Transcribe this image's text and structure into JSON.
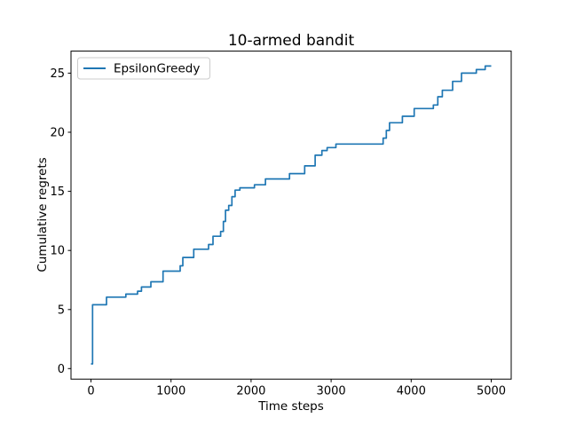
{
  "chart_data": {
    "type": "line",
    "step_mode": "post",
    "title": "10-armed bandit",
    "xlabel": "Time steps",
    "ylabel": "Cumulative regrets",
    "legend": {
      "location": "upper left",
      "entries": [
        {
          "label": "EpsilonGreedy",
          "color": "#1f77b4"
        }
      ]
    },
    "axes": {
      "xlim": [
        -250,
        5250
      ],
      "ylim": [
        -0.89,
        26.86
      ],
      "x_ticks": [
        0,
        1000,
        2000,
        3000,
        4000,
        5000
      ],
      "y_ticks": [
        0,
        5,
        10,
        15,
        20,
        25
      ],
      "grid": false
    },
    "series": [
      {
        "name": "EpsilonGreedy",
        "color": "#1f77b4",
        "points": [
          [
            0,
            0.4
          ],
          [
            20,
            5.4
          ],
          [
            194,
            6.05
          ],
          [
            435,
            6.3
          ],
          [
            582,
            6.55
          ],
          [
            630,
            6.9
          ],
          [
            748,
            7.35
          ],
          [
            900,
            8.25
          ],
          [
            1114,
            8.7
          ],
          [
            1147,
            9.4
          ],
          [
            1284,
            10.1
          ],
          [
            1469,
            10.5
          ],
          [
            1524,
            11.2
          ],
          [
            1620,
            11.6
          ],
          [
            1654,
            12.45
          ],
          [
            1680,
            13.4
          ],
          [
            1720,
            13.8
          ],
          [
            1760,
            14.55
          ],
          [
            1800,
            15.1
          ],
          [
            1860,
            15.3
          ],
          [
            2042,
            15.55
          ],
          [
            2180,
            16.05
          ],
          [
            2480,
            16.5
          ],
          [
            2670,
            17.15
          ],
          [
            2800,
            18.05
          ],
          [
            2885,
            18.45
          ],
          [
            2950,
            18.7
          ],
          [
            3060,
            19.0
          ],
          [
            3650,
            19.5
          ],
          [
            3690,
            20.15
          ],
          [
            3730,
            20.8
          ],
          [
            3890,
            21.35
          ],
          [
            4038,
            22.0
          ],
          [
            4278,
            22.3
          ],
          [
            4333,
            23.0
          ],
          [
            4389,
            23.55
          ],
          [
            4518,
            24.3
          ],
          [
            4629,
            25.0
          ],
          [
            4814,
            25.3
          ],
          [
            4925,
            25.6
          ],
          [
            5000,
            25.6
          ]
        ]
      }
    ]
  },
  "colors": {
    "background": "#ffffff",
    "text": "#000000",
    "spine": "#000000",
    "legend_border": "#cccccc"
  }
}
